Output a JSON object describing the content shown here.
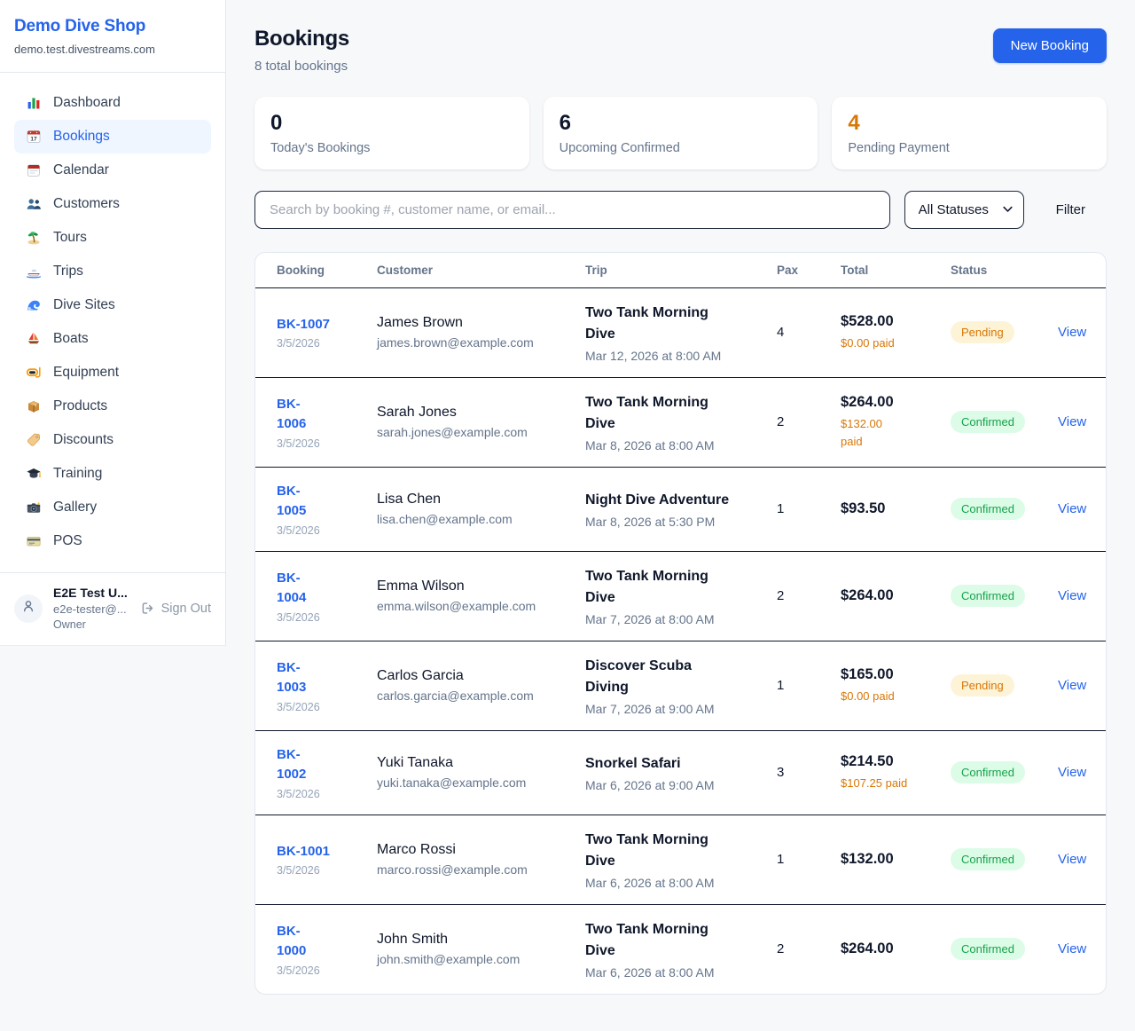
{
  "colors": {
    "accent": "#2563eb",
    "orange": "#d97706",
    "green": "#16a34a",
    "dark": "#0f172a"
  },
  "sidebar": {
    "brand": {
      "name": "Demo Dive Shop",
      "domain": "demo.test.divestreams.com"
    },
    "nav": [
      {
        "label": "Dashboard",
        "icon": "bar-chart",
        "active": false
      },
      {
        "label": "Bookings",
        "icon": "calendar-date",
        "active": true
      },
      {
        "label": "Calendar",
        "icon": "calendar",
        "active": false
      },
      {
        "label": "Customers",
        "icon": "people",
        "active": false
      },
      {
        "label": "Tours",
        "icon": "island",
        "active": false
      },
      {
        "label": "Trips",
        "icon": "speedboat",
        "active": false
      },
      {
        "label": "Dive Sites",
        "icon": "wave",
        "active": false
      },
      {
        "label": "Boats",
        "icon": "sailboat",
        "active": false
      },
      {
        "label": "Equipment",
        "icon": "diving-mask",
        "active": false
      },
      {
        "label": "Products",
        "icon": "package",
        "active": false
      },
      {
        "label": "Discounts",
        "icon": "tag",
        "active": false
      },
      {
        "label": "Training",
        "icon": "graduation-cap",
        "active": false
      },
      {
        "label": "Gallery",
        "icon": "camera",
        "active": false
      },
      {
        "label": "POS",
        "icon": "credit-card",
        "active": false
      }
    ],
    "user": {
      "name": "E2E Test U...",
      "email": "e2e-tester@...",
      "role": "Owner",
      "sign_out_label": "Sign Out"
    }
  },
  "header": {
    "title": "Bookings",
    "subtitle": "8 total bookings",
    "new_booking_label": "New Booking"
  },
  "stats": [
    {
      "value": "0",
      "label": "Today's Bookings",
      "value_color": "#0f172a"
    },
    {
      "value": "6",
      "label": "Upcoming Confirmed",
      "value_color": "#0f172a"
    },
    {
      "value": "4",
      "label": "Pending Payment",
      "value_color": "#d97706"
    }
  ],
  "filters": {
    "search_placeholder": "Search by booking #, customer name, or email...",
    "status_selected": "All Statuses",
    "filter_label": "Filter"
  },
  "table": {
    "columns": [
      "Booking",
      "Customer",
      "Trip",
      "Pax",
      "Total",
      "Status"
    ],
    "view_label": "View",
    "rows": [
      {
        "number": "BK-1007",
        "date": "3/5/2026",
        "customer": "James Brown",
        "email": "james.brown@example.com",
        "trip": "Two Tank Morning\nDive",
        "trip_when": "Mar 12, 2026 at 8:00 AM",
        "pax": "4",
        "total": "$528.00",
        "paid": "$0.00 paid",
        "status": "Pending"
      },
      {
        "number": "BK-\n1006",
        "date": "3/5/2026",
        "customer": "Sarah Jones",
        "email": "sarah.jones@example.com",
        "trip": "Two Tank Morning\nDive",
        "trip_when": "Mar 8, 2026 at 8:00 AM",
        "pax": "2",
        "total": "$264.00",
        "paid": "$132.00\npaid",
        "status": "Confirmed"
      },
      {
        "number": "BK-\n1005",
        "date": "3/5/2026",
        "customer": "Lisa Chen",
        "email": "lisa.chen@example.com",
        "trip": "Night Dive Adventure",
        "trip_when": "Mar 8, 2026 at 5:30 PM",
        "pax": "1",
        "total": "$93.50",
        "paid": "",
        "status": "Confirmed"
      },
      {
        "number": "BK-\n1004",
        "date": "3/5/2026",
        "customer": "Emma Wilson",
        "email": "emma.wilson@example.com",
        "trip": "Two Tank Morning\nDive",
        "trip_when": "Mar 7, 2026 at 8:00 AM",
        "pax": "2",
        "total": "$264.00",
        "paid": "",
        "status": "Confirmed"
      },
      {
        "number": "BK-\n1003",
        "date": "3/5/2026",
        "customer": "Carlos Garcia",
        "email": "carlos.garcia@example.com",
        "trip": "Discover Scuba\nDiving",
        "trip_when": "Mar 7, 2026 at 9:00 AM",
        "pax": "1",
        "total": "$165.00",
        "paid": "$0.00 paid",
        "status": "Pending"
      },
      {
        "number": "BK-\n1002",
        "date": "3/5/2026",
        "customer": "Yuki Tanaka",
        "email": "yuki.tanaka@example.com",
        "trip": "Snorkel Safari",
        "trip_when": "Mar 6, 2026 at 9:00 AM",
        "pax": "3",
        "total": "$214.50",
        "paid": "$107.25 paid",
        "status": "Confirmed"
      },
      {
        "number": "BK-1001",
        "date": "3/5/2026",
        "customer": "Marco Rossi",
        "email": "marco.rossi@example.com",
        "trip": "Two Tank Morning\nDive",
        "trip_when": "Mar 6, 2026 at 8:00 AM",
        "pax": "1",
        "total": "$132.00",
        "paid": "",
        "status": "Confirmed"
      },
      {
        "number": "BK-\n1000",
        "date": "3/5/2026",
        "customer": "John Smith",
        "email": "john.smith@example.com",
        "trip": "Two Tank Morning\nDive",
        "trip_when": "Mar 6, 2026 at 8:00 AM",
        "pax": "2",
        "total": "$264.00",
        "paid": "",
        "status": "Confirmed"
      }
    ]
  }
}
